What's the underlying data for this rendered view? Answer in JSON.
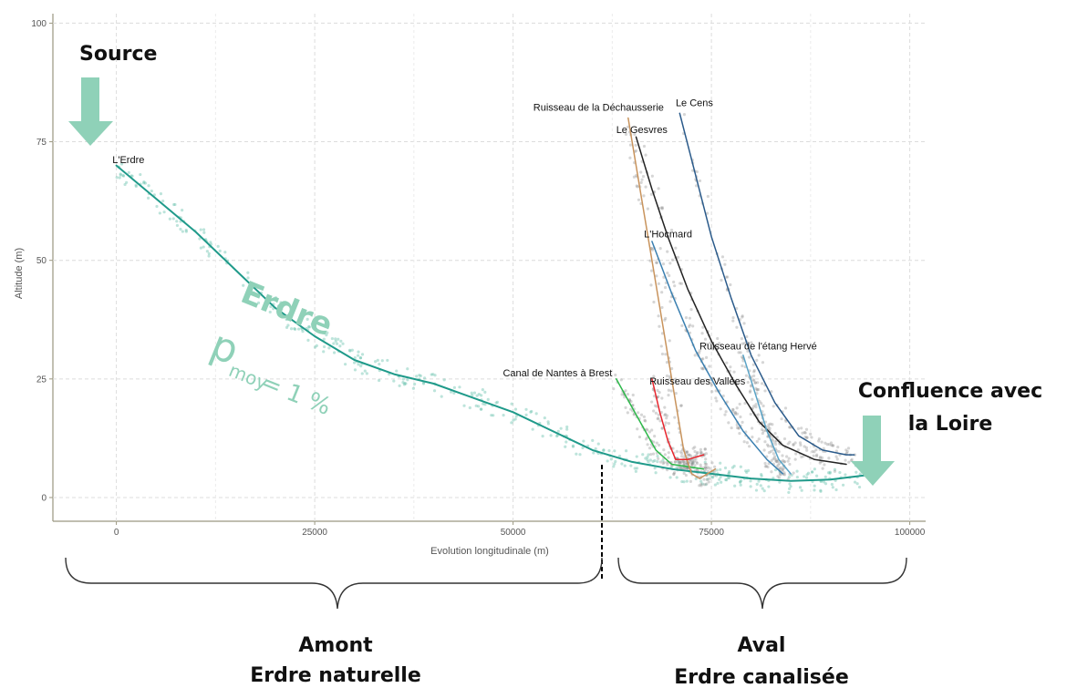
{
  "chart_data": {
    "type": "line",
    "xlabel": "Evolution longitudinale (m)",
    "ylabel": "Altitude (m)",
    "xlim": [
      -8000,
      102000
    ],
    "ylim": [
      -5,
      102
    ],
    "x_ticks": [
      0,
      25000,
      50000,
      75000,
      100000
    ],
    "y_ticks": [
      0,
      25,
      50,
      75,
      100
    ],
    "grid": true,
    "series": [
      {
        "name": "L'Erdre",
        "color": "#1f9a8a",
        "points": [
          [
            0,
            70
          ],
          [
            5000,
            63
          ],
          [
            10000,
            56
          ],
          [
            15000,
            48
          ],
          [
            20000,
            40
          ],
          [
            25000,
            34
          ],
          [
            30000,
            29
          ],
          [
            35000,
            26
          ],
          [
            40000,
            24
          ],
          [
            45000,
            21
          ],
          [
            50000,
            18
          ],
          [
            55000,
            14
          ],
          [
            60000,
            10
          ],
          [
            65000,
            7.5
          ],
          [
            70000,
            6
          ],
          [
            75000,
            5
          ],
          [
            80000,
            4
          ],
          [
            85000,
            3.5
          ],
          [
            90000,
            3.8
          ],
          [
            96000,
            5
          ]
        ]
      },
      {
        "name": "Canal de Nantes à Brest",
        "color": "#2db84a",
        "points": [
          [
            63000,
            25
          ],
          [
            66000,
            16
          ],
          [
            68000,
            10
          ],
          [
            70000,
            7
          ],
          [
            74000,
            6
          ]
        ]
      },
      {
        "name": "Ruisseau de la Déchausserie",
        "color": "#c8935c",
        "points": [
          [
            64500,
            80
          ],
          [
            66000,
            65
          ],
          [
            67500,
            50
          ],
          [
            69000,
            35
          ],
          [
            70500,
            20
          ],
          [
            71500,
            10
          ],
          [
            72500,
            5
          ],
          [
            73500,
            4
          ],
          [
            74500,
            5
          ],
          [
            75500,
            6
          ]
        ]
      },
      {
        "name": "Le Gesvres",
        "color": "#222222",
        "points": [
          [
            65500,
            76
          ],
          [
            67500,
            65
          ],
          [
            69500,
            55
          ],
          [
            72000,
            44
          ],
          [
            75000,
            33
          ],
          [
            78000,
            24
          ],
          [
            81000,
            16
          ],
          [
            84000,
            11
          ],
          [
            88000,
            8
          ],
          [
            92000,
            7
          ]
        ]
      },
      {
        "name": "Le Cens",
        "color": "#2a5a8a",
        "points": [
          [
            71000,
            81
          ],
          [
            73000,
            68
          ],
          [
            75000,
            55
          ],
          [
            77500,
            42
          ],
          [
            80000,
            30
          ],
          [
            83000,
            20
          ],
          [
            86000,
            13
          ],
          [
            89000,
            10
          ],
          [
            92000,
            9
          ],
          [
            93000,
            9
          ]
        ]
      },
      {
        "name": "L'Hocmard",
        "color": "#3a7fb0",
        "points": [
          [
            67500,
            54
          ],
          [
            70000,
            43
          ],
          [
            73000,
            31
          ],
          [
            76000,
            22
          ],
          [
            79000,
            14
          ],
          [
            82000,
            8
          ],
          [
            84000,
            5
          ]
        ]
      },
      {
        "name": "Ruisseau de l'étang Hervé",
        "color": "#5aa3c6",
        "points": [
          [
            79000,
            30
          ],
          [
            80500,
            22
          ],
          [
            82000,
            14
          ],
          [
            83500,
            8
          ],
          [
            85000,
            5
          ]
        ]
      },
      {
        "name": "Ruisseau des Vallées",
        "color": "#e8262e",
        "points": [
          [
            67500,
            25
          ],
          [
            68500,
            18
          ],
          [
            69500,
            12
          ],
          [
            70500,
            8
          ],
          [
            72000,
            8
          ],
          [
            74000,
            9
          ]
        ]
      }
    ],
    "labels": [
      {
        "text": "L'Erdre",
        "x": -500,
        "y": 70.5
      },
      {
        "text": "Canal de Nantes à Brest",
        "x": 62500,
        "y": 25.5
      },
      {
        "text": "Ruisseau de la Déchausserie",
        "x": 69000,
        "y": 81.5
      },
      {
        "text": "Le Gesvres",
        "x": 63000,
        "y": 76.8
      },
      {
        "text": "Le Cens",
        "x": 70500,
        "y": 82.5
      },
      {
        "text": "L'Hocmard",
        "x": 66500,
        "y": 54.8
      },
      {
        "text": "Ruisseau de l'étang Hervé",
        "x": 73500,
        "y": 31.2
      },
      {
        "text": "Ruisseau des Vallées",
        "x": 67200,
        "y": 23.8
      }
    ]
  },
  "annotations": {
    "source": "Source",
    "confluence_line1": "Confluence avec",
    "confluence_line2": "la Loire",
    "erdre": "Erdre",
    "slope_symbol": "p",
    "slope_sub": "moy",
    "slope_value": "= 1 %",
    "amont_line1": "Amont",
    "amont_line2": "Erdre naturelle",
    "aval_line1": "Aval",
    "aval_line2": "Erdre canalisée"
  },
  "colors": {
    "arrow": "#8fd1b8",
    "panel_border": "#9a9780",
    "grid": "#dcdcdc"
  }
}
